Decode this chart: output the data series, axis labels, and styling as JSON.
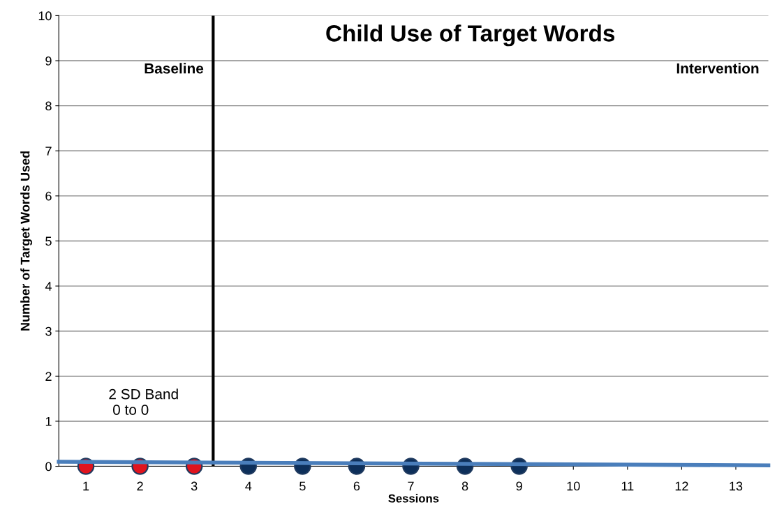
{
  "chart_data": {
    "type": "scatter",
    "title": "Child Use of Target Words",
    "xlabel": "Sessions",
    "ylabel": "Number of Target Words Used",
    "xlim": [
      0.5,
      13.6
    ],
    "xticks": [
      1,
      2,
      3,
      4,
      5,
      6,
      7,
      8,
      9,
      10,
      11,
      12,
      13
    ],
    "ylim": [
      0,
      10
    ],
    "yticks": [
      0,
      1,
      2,
      3,
      4,
      5,
      6,
      7,
      8,
      9,
      10
    ],
    "grid": "y",
    "marker": "circle",
    "legend": false,
    "series": [
      {
        "color": "#e0141e",
        "x": [
          1,
          2,
          3
        ],
        "values": [
          0,
          0,
          0
        ]
      },
      {
        "color": "#0d2f5a",
        "x": [
          4,
          5,
          6,
          7,
          8,
          9
        ],
        "values": [
          0,
          0,
          0,
          0,
          0,
          0
        ]
      },
      {
        "type": "line",
        "marker": "none",
        "color": "#4a7ebb",
        "x": [
          0.5,
          13.6
        ],
        "values": [
          0.1,
          0.02
        ]
      }
    ],
    "ref_lines": [
      {
        "axis": "x",
        "value": 3.35,
        "color": "#000000",
        "line_style": "solid"
      }
    ],
    "annotations": [
      "Baseline",
      "Intervention",
      "2 SD Band\n 0 to 0"
    ]
  }
}
